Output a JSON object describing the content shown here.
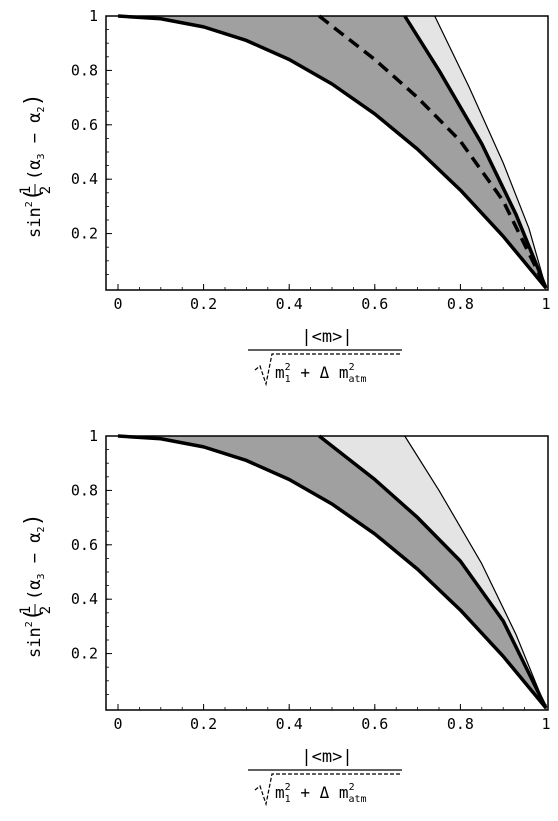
{
  "chart_data": [
    {
      "type": "area",
      "xlim": [
        0,
        1
      ],
      "ylim": [
        0,
        1
      ],
      "xticks": [
        "0",
        "0.2",
        "0.4",
        "0.6",
        "0.8",
        "1"
      ],
      "yticks": [
        "0.2",
        "0.4",
        "0.6",
        "0.8",
        "1"
      ],
      "xlabel": {
        "numerator": "|<m>|",
        "denominator_root": "m",
        "denominator_sub1": "1",
        "denominator_sup1": "2",
        "denominator_op": "+ Δ m",
        "denominator_sub2": "atm",
        "denominator_sup2": "2"
      },
      "ylabel": {
        "fn": "sin",
        "exp": "2",
        "frac_num": "1",
        "frac_den": "2",
        "arg": "(α",
        "sub_a": "3",
        "minus": " − α",
        "sub_b": "2",
        "close": ")"
      },
      "grid": false,
      "series": [
        {
          "kind": "boundary",
          "style": "thick",
          "x": [
            0,
            0.1,
            0.2,
            0.3,
            0.4,
            0.5,
            0.6,
            0.7,
            0.8,
            0.9,
            1.0
          ],
          "y": [
            1.0,
            0.99,
            0.96,
            0.91,
            0.84,
            0.75,
            0.64,
            0.51,
            0.36,
            0.19,
            0.0
          ]
        },
        {
          "kind": "boundary",
          "style": "thick",
          "x": [
            0.67,
            0.75,
            0.85,
            0.93,
            1.0
          ],
          "y": [
            1.0,
            0.8,
            0.53,
            0.27,
            0.0
          ]
        },
        {
          "kind": "boundary",
          "style": "dashed",
          "x": [
            0.47,
            0.6,
            0.7,
            0.8,
            0.9,
            1.0
          ],
          "y": [
            1.0,
            0.84,
            0.7,
            0.54,
            0.32,
            0.0
          ]
        },
        {
          "kind": "boundary",
          "style": "thin",
          "x": [
            0.74,
            0.82,
            0.9,
            0.96,
            1.0
          ],
          "y": [
            1.0,
            0.74,
            0.46,
            0.22,
            0.0
          ]
        }
      ],
      "fills": {
        "dark": "#a0a0a0",
        "light": "#e4e4e4"
      }
    },
    {
      "type": "area",
      "xlim": [
        0,
        1
      ],
      "ylim": [
        0,
        1
      ],
      "xticks": [
        "0",
        "0.2",
        "0.4",
        "0.6",
        "0.8",
        "1"
      ],
      "yticks": [
        "0.2",
        "0.4",
        "0.6",
        "0.8",
        "1"
      ],
      "xlabel": {
        "numerator": "|<m>|",
        "denominator_root": "m",
        "denominator_sub1": "1",
        "denominator_sup1": "2",
        "denominator_op": "+ Δ m",
        "denominator_sub2": "atm",
        "denominator_sup2": "2"
      },
      "ylabel": {
        "fn": "sin",
        "exp": "2",
        "frac_num": "1",
        "frac_den": "2",
        "arg": "(α",
        "sub_a": "3",
        "minus": " − α",
        "sub_b": "2",
        "close": ")"
      },
      "grid": false,
      "series": [
        {
          "kind": "boundary",
          "style": "thick",
          "x": [
            0,
            0.1,
            0.2,
            0.3,
            0.4,
            0.5,
            0.6,
            0.7,
            0.8,
            0.9,
            1.0
          ],
          "y": [
            1.0,
            0.99,
            0.96,
            0.91,
            0.84,
            0.75,
            0.64,
            0.51,
            0.36,
            0.19,
            0.0
          ]
        },
        {
          "kind": "boundary",
          "style": "thick",
          "x": [
            0.47,
            0.6,
            0.7,
            0.8,
            0.9,
            1.0
          ],
          "y": [
            1.0,
            0.84,
            0.7,
            0.54,
            0.32,
            0.0
          ]
        },
        {
          "kind": "boundary",
          "style": "thin",
          "x": [
            0.67,
            0.75,
            0.85,
            0.93,
            1.0
          ],
          "y": [
            1.0,
            0.8,
            0.53,
            0.27,
            0.0
          ]
        }
      ],
      "fills": {
        "dark": "#a0a0a0",
        "light": "#e4e4e4"
      }
    }
  ]
}
